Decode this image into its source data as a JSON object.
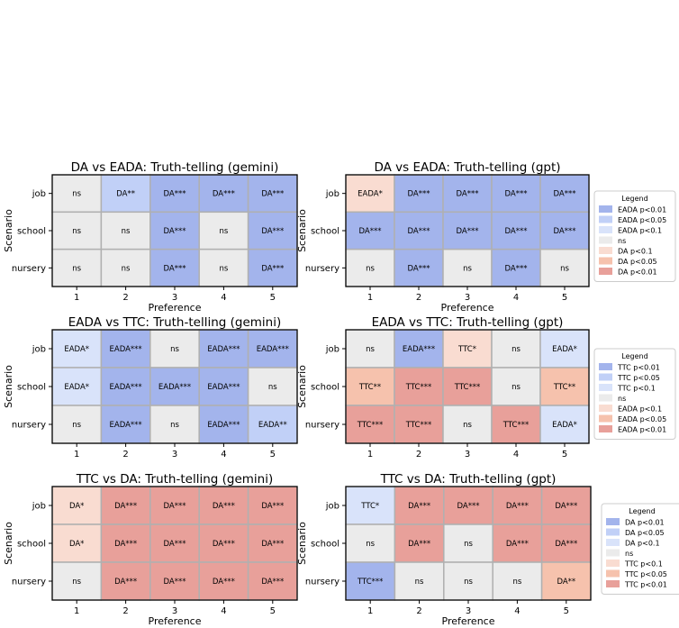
{
  "colors": {
    "blue_p01": "#a3b4ec",
    "blue_p05": "#c1d0f7",
    "blue_p1": "#d9e3fa",
    "ns": "#ebebeb",
    "red_p1": "#f9dcd1",
    "red_p05": "#f6c2ad",
    "red_p01": "#e8a09a"
  },
  "chart_data": [
    {
      "type": "heatmap",
      "title": "DA vs EADA: Truth-telling (gemini)",
      "xlabel": "Preference",
      "ylabel": "Scenario",
      "x": [
        "1",
        "2",
        "3",
        "4",
        "5"
      ],
      "y": [
        "job",
        "school",
        "nursery"
      ],
      "cells": [
        [
          "ns",
          "DA**",
          "DA***",
          "DA***",
          "DA***"
        ],
        [
          "ns",
          "ns",
          "DA***",
          "ns",
          "DA***"
        ],
        [
          "ns",
          "ns",
          "DA***",
          "ns",
          "DA***"
        ]
      ],
      "legend": null
    },
    {
      "type": "heatmap",
      "title": "DA vs EADA: Truth-telling (gpt)",
      "xlabel": "Preference",
      "ylabel": "Scenario",
      "x": [
        "1",
        "2",
        "3",
        "4",
        "5"
      ],
      "y": [
        "job",
        "school",
        "nursery"
      ],
      "cells": [
        [
          "EADA*",
          "DA***",
          "DA***",
          "DA***",
          "DA***"
        ],
        [
          "DA***",
          "DA***",
          "DA***",
          "DA***",
          "DA***"
        ],
        [
          "ns",
          "DA***",
          "ns",
          "DA***",
          "ns"
        ]
      ],
      "legend": {
        "title": "Legend",
        "entries": [
          "EADA p<0.01",
          "EADA p<0.05",
          "EADA p<0.1",
          "ns",
          "DA p<0.1",
          "DA p<0.05",
          "DA p<0.01"
        ]
      }
    },
    {
      "type": "heatmap",
      "title": "EADA vs TTC: Truth-telling (gemini)",
      "xlabel": "",
      "ylabel": "Scenario",
      "x": [
        "1",
        "2",
        "3",
        "4",
        "5"
      ],
      "y": [
        "job",
        "school",
        "nursery"
      ],
      "cells": [
        [
          "EADA*",
          "EADA***",
          "ns",
          "EADA***",
          "EADA***"
        ],
        [
          "EADA*",
          "EADA***",
          "EADA***",
          "EADA***",
          "ns"
        ],
        [
          "ns",
          "EADA***",
          "ns",
          "EADA***",
          "EADA**"
        ]
      ],
      "legend": null
    },
    {
      "type": "heatmap",
      "title": "EADA vs TTC: Truth-telling (gpt)",
      "xlabel": "",
      "ylabel": "Scenario",
      "x": [
        "1",
        "2",
        "3",
        "4",
        "5"
      ],
      "y": [
        "job",
        "school",
        "nursery"
      ],
      "cells": [
        [
          "ns",
          "EADA***",
          "TTC*",
          "ns",
          "EADA*"
        ],
        [
          "TTC**",
          "TTC***",
          "TTC***",
          "ns",
          "TTC**"
        ],
        [
          "TTC***",
          "TTC***",
          "ns",
          "TTC***",
          "EADA*"
        ]
      ],
      "legend": {
        "title": "Legend",
        "entries": [
          "TTC p<0.01",
          "TTC p<0.05",
          "TTC p<0.1",
          "ns",
          "EADA p<0.1",
          "EADA p<0.05",
          "EADA p<0.01"
        ]
      }
    },
    {
      "type": "heatmap",
      "title": "TTC vs DA: Truth-telling (gemini)",
      "xlabel": "Preference",
      "ylabel": "Scenario",
      "x": [
        "1",
        "2",
        "3",
        "4",
        "5"
      ],
      "y": [
        "job",
        "school",
        "nursery"
      ],
      "cells": [
        [
          "DA*",
          "DA***",
          "DA***",
          "DA***",
          "DA***"
        ],
        [
          "DA*",
          "DA***",
          "DA***",
          "DA***",
          "DA***"
        ],
        [
          "ns",
          "DA***",
          "DA***",
          "DA***",
          "DA***"
        ]
      ],
      "legend": null
    },
    {
      "type": "heatmap",
      "title": "TTC vs DA: Truth-telling (gpt)",
      "xlabel": "Preference",
      "ylabel": "Scenario",
      "x": [
        "1",
        "2",
        "3",
        "4",
        "5"
      ],
      "y": [
        "job",
        "school",
        "nursery"
      ],
      "cells": [
        [
          "TTC*",
          "DA***",
          "DA***",
          "DA***",
          "DA***"
        ],
        [
          "ns",
          "DA***",
          "ns",
          "DA***",
          "DA***"
        ],
        [
          "TTC***",
          "ns",
          "ns",
          "ns",
          "DA**"
        ]
      ],
      "legend": {
        "title": "Legend",
        "entries": [
          "DA p<0.01",
          "DA p<0.05",
          "DA p<0.1",
          "ns",
          "TTC p<0.1",
          "TTC p<0.05",
          "TTC p<0.01"
        ]
      }
    }
  ]
}
